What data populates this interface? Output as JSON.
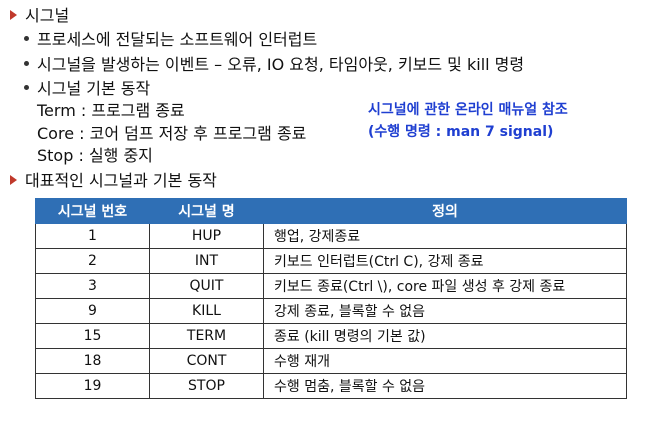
{
  "sections": {
    "signal_heading": "시그널",
    "bullet_definition": "프로세스에 전달되는 소프트웨어 인터럽트",
    "bullet_events": "시그널을 발생하는 이벤트 – 오류, IO 요청, 타임아웃, 키보드 및 kill 명령",
    "bullet_actions": "시그널 기본 동작",
    "action_term": "Term : 프로그램 종료",
    "action_core": "Core : 코어 덤프 저장 후 프로그램 종료",
    "action_stop": "Stop : 실행 중지",
    "table_heading": "대표적인 시그널과 기본 동작"
  },
  "note": {
    "line1": "시그널에 관한  온라인 매뉴얼 참조",
    "line2": "(수행 명령 :  man 7 signal)"
  },
  "table": {
    "headers": [
      "시그널 번호",
      "시그널 명",
      "정의"
    ],
    "rows": [
      {
        "num": "1",
        "name": "HUP",
        "desc": "행업, 강제종료"
      },
      {
        "num": "2",
        "name": "INT",
        "desc": "키보드 인터럽트(Ctrl C), 강제 종료"
      },
      {
        "num": "3",
        "name": "QUIT",
        "desc": "키보드 종료(Ctrl \\), core 파일 생성 후 강제 종료"
      },
      {
        "num": "9",
        "name": "KILL",
        "desc": "강제 종료, 블록할 수 없음"
      },
      {
        "num": "15",
        "name": "TERM",
        "desc": "종료 (kill 명령의 기본 값)"
      },
      {
        "num": "18",
        "name": "CONT",
        "desc": "수행 재개"
      },
      {
        "num": "19",
        "name": "STOP",
        "desc": "수행 멈춤, 블록할 수 없음"
      }
    ]
  },
  "colors": {
    "arrow": "#c0392b",
    "note_text": "#1f3fd1",
    "table_header_bg": "#2f6fb5"
  }
}
